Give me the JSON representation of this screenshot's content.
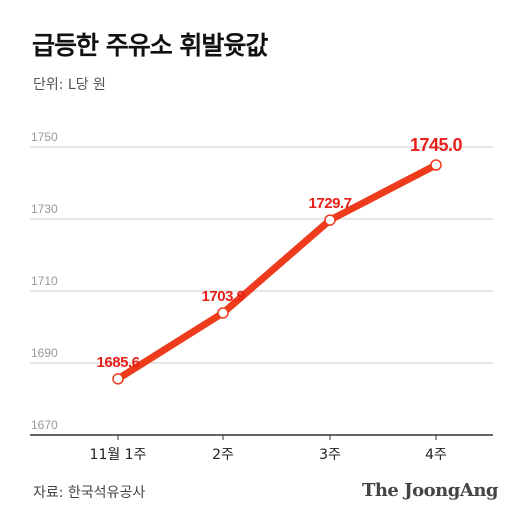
{
  "title": "급등한 주유소 휘발윳값",
  "unit_label": "단위: L당 원",
  "source": "자료: 한국석유공사",
  "logo": "The JoongAng",
  "colors": {
    "line": "#ee3b1c",
    "label": "#e8201a",
    "grid": "#cccccc",
    "axis": "#333333",
    "tick": "#999999"
  },
  "chart_data": {
    "type": "line",
    "title": "급등한 주유소 휘발윳값",
    "ylabel": "단위: L당 원",
    "categories": [
      "11월 1주",
      "2주",
      "3주",
      "4주"
    ],
    "series": [
      {
        "values": [
          1685.6,
          1703.9,
          1729.7,
          1745.0
        ],
        "labels": [
          "1685.6",
          "1703.9",
          "1729.7",
          "1745.0"
        ]
      }
    ],
    "yticks": [
      1670,
      1690,
      1710,
      1730,
      1750
    ],
    "ylim": [
      1670,
      1750
    ],
    "grid": true
  }
}
